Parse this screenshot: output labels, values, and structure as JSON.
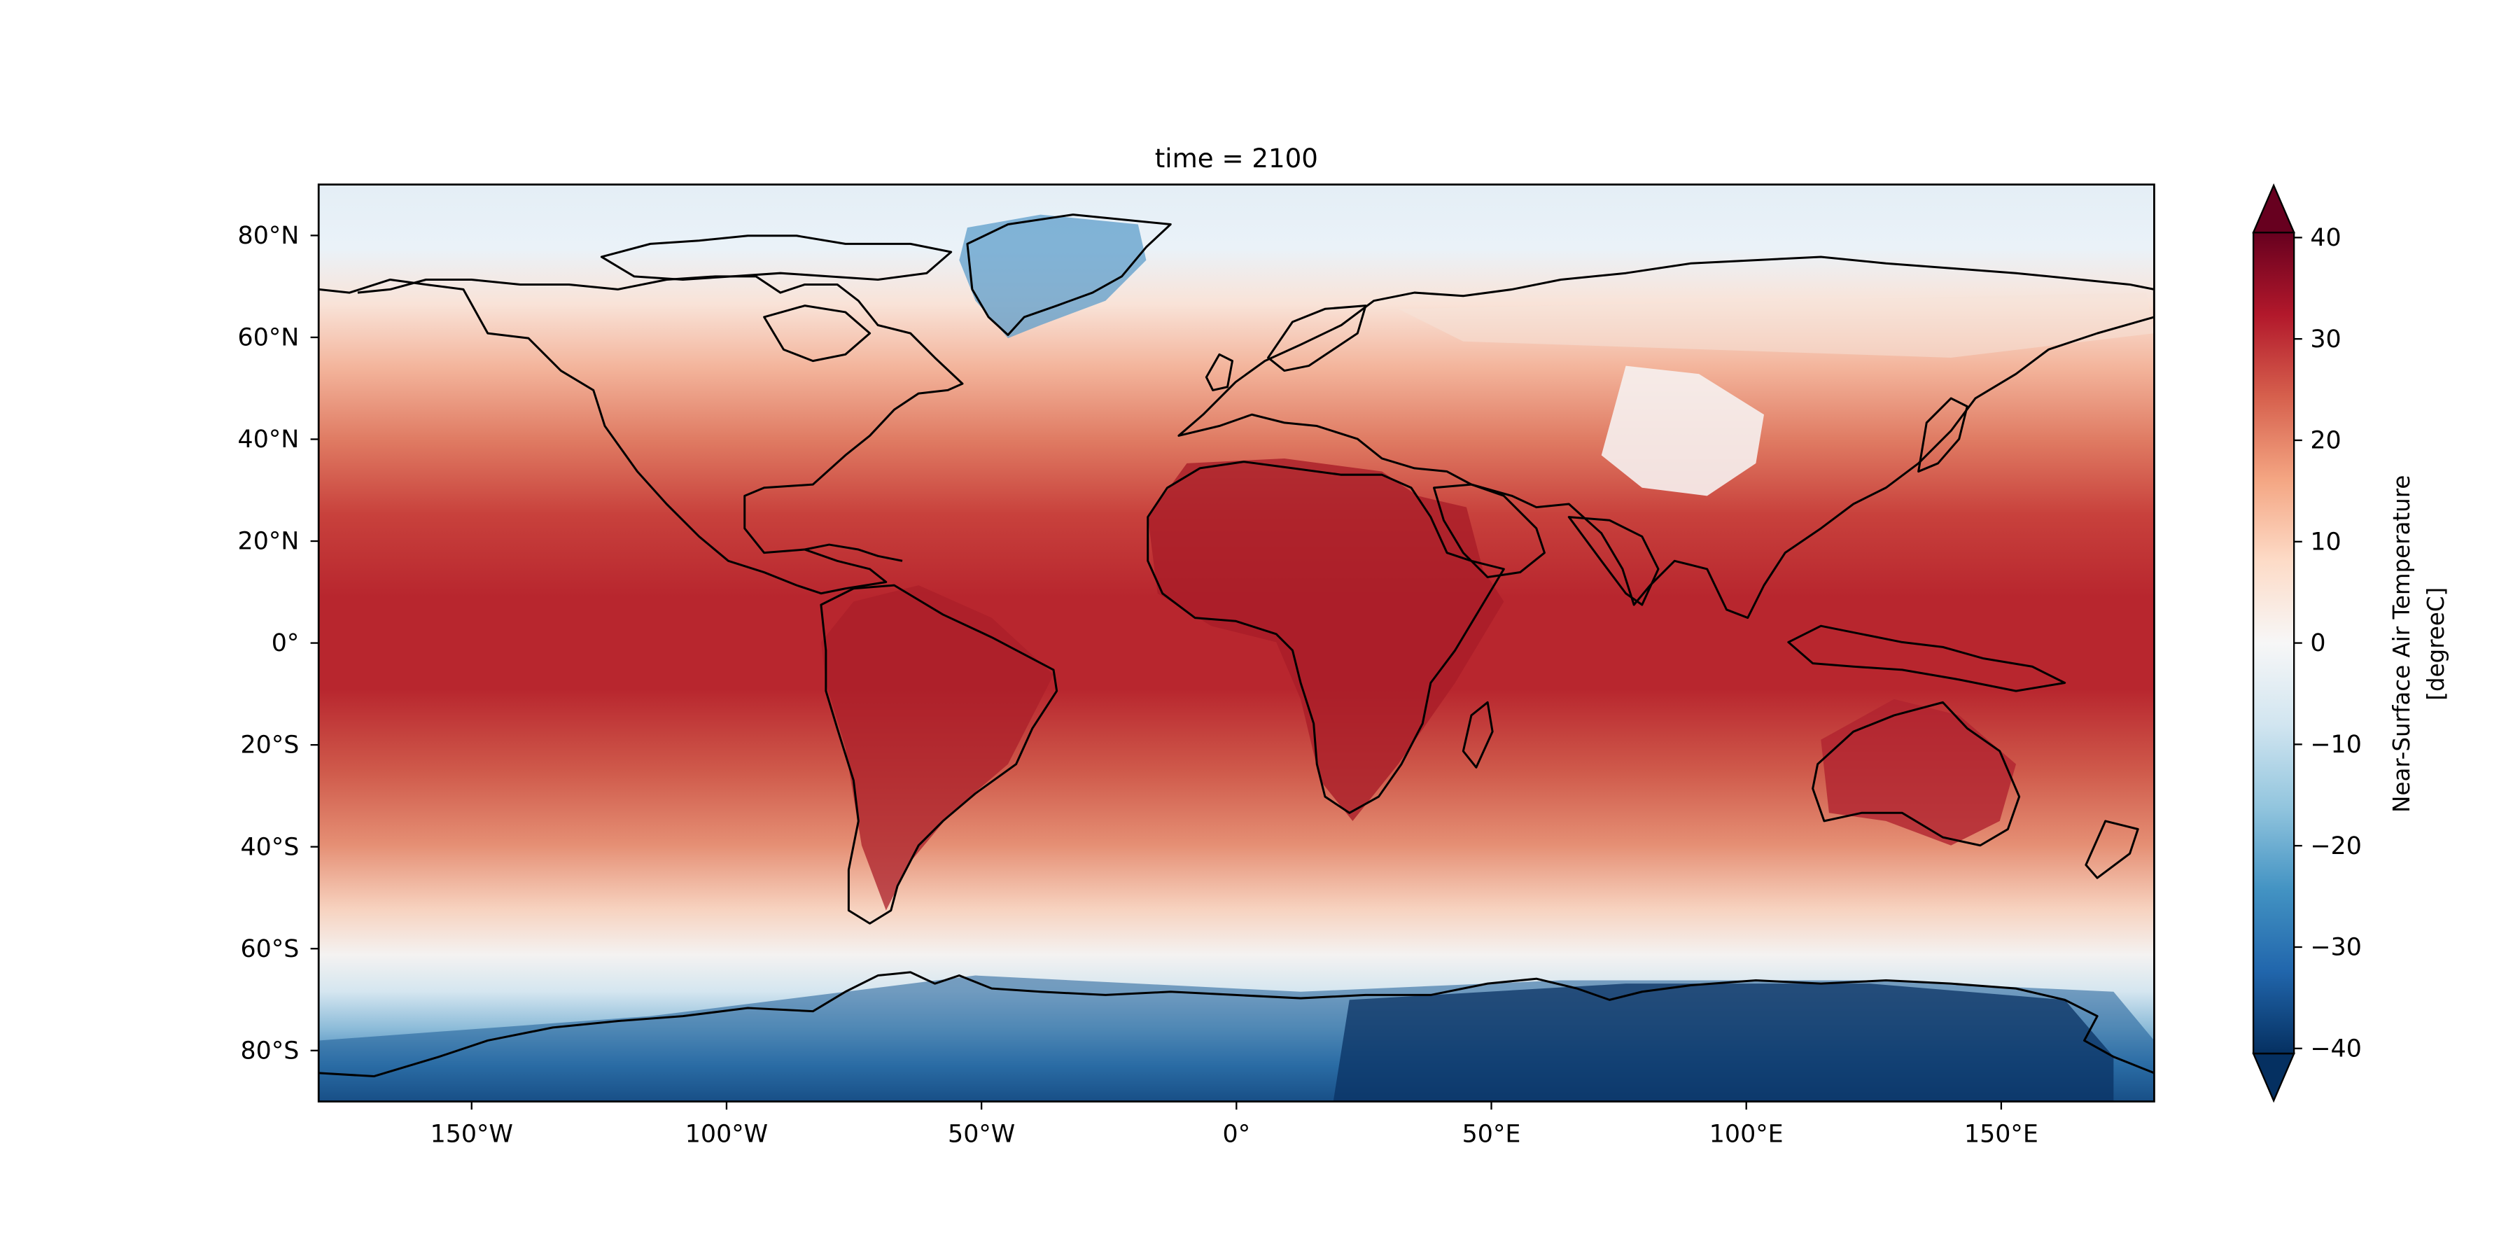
{
  "figure": {
    "title": "time = 2100"
  },
  "colorbar": {
    "label_line1": "Near-Surface Air Temperature",
    "label_line2": "[degreeC]",
    "colormap": "RdBu_r",
    "range": [
      -45,
      45
    ],
    "ticks": [
      40,
      30,
      20,
      10,
      0,
      -10,
      -20,
      -30,
      -40
    ],
    "tick_labels": [
      "40",
      "30",
      "20",
      "10",
      "0",
      "−10",
      "−20",
      "−30",
      "−40"
    ],
    "colors": [
      "#053061",
      "#2166ac",
      "#4393c3",
      "#92c5de",
      "#d1e5f0",
      "#f7f7f7",
      "#fddbc7",
      "#f4a582",
      "#d6604d",
      "#b2182b",
      "#67001f"
    ],
    "extend": "both"
  },
  "map": {
    "projection": "PlateCarree",
    "lon_range": [
      -180,
      180
    ],
    "lat_range": [
      -90,
      90
    ],
    "x_ticks": [
      -150,
      -100,
      -50,
      0,
      50,
      100,
      150
    ],
    "x_tick_labels": [
      "150°W",
      "100°W",
      "50°W",
      "0°",
      "50°E",
      "100°E",
      "150°E"
    ],
    "y_ticks": [
      80,
      60,
      40,
      20,
      0,
      -20,
      -40,
      -60,
      -80
    ],
    "y_tick_labels": [
      "80°N",
      "60°N",
      "40°N",
      "20°N",
      "0°",
      "20°S",
      "40°S",
      "60°S",
      "80°S"
    ],
    "coastlines": true
  }
}
